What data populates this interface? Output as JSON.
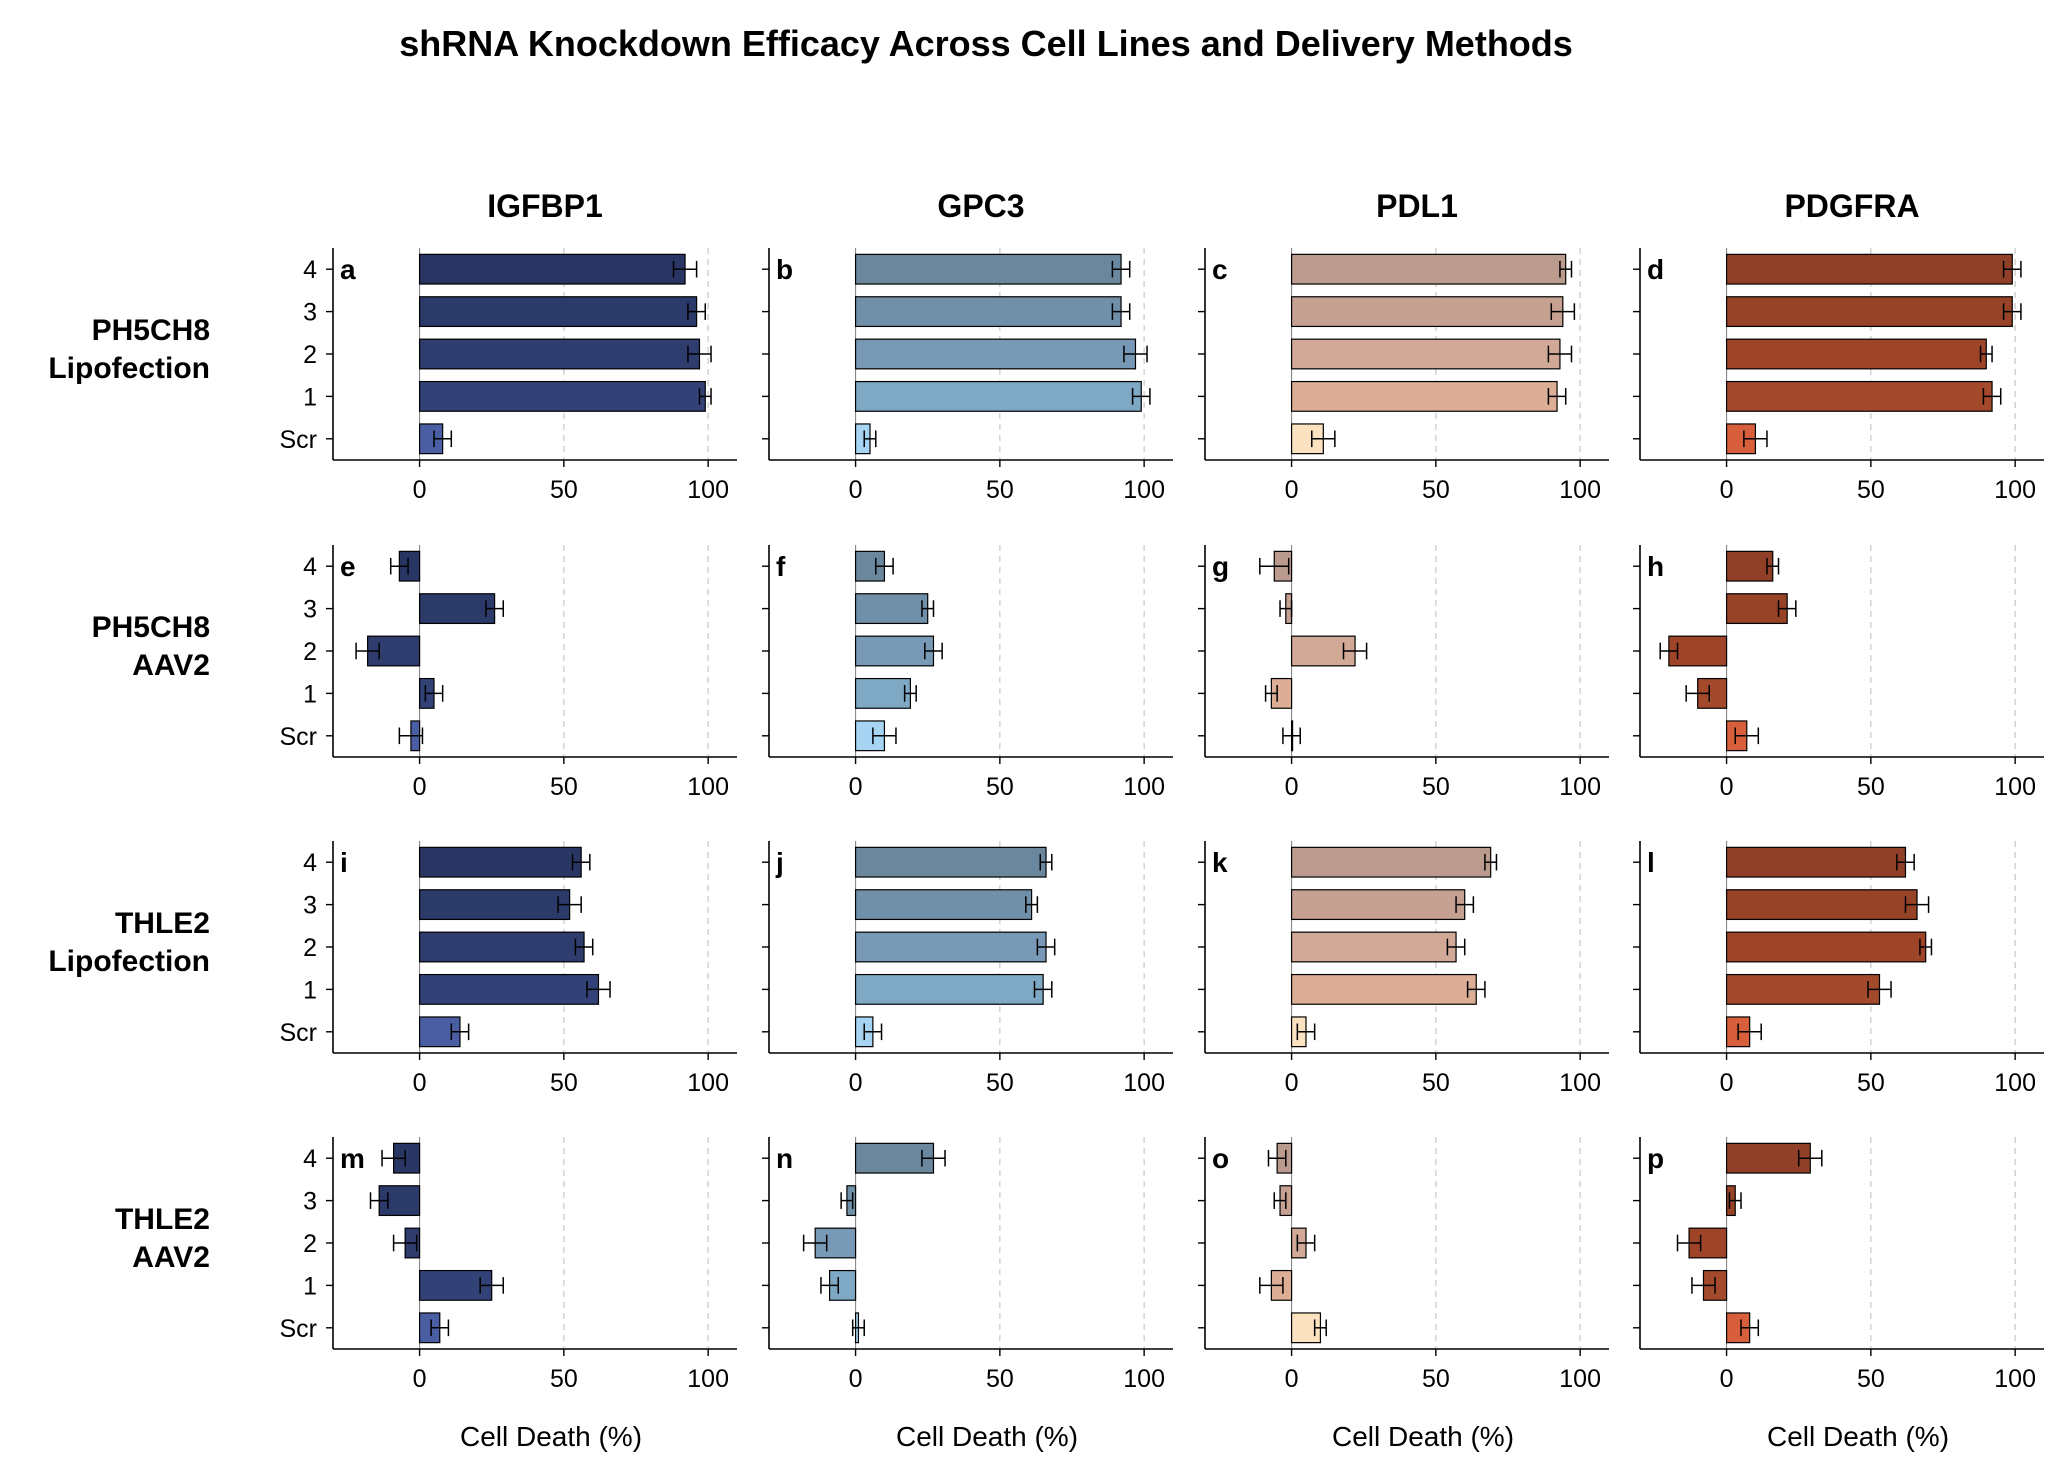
{
  "title": "shRNA Knockdown Efficacy Across Cell Lines and Delivery Methods",
  "xlabel": "Cell Death (%)",
  "chart_data": {
    "type": "bar",
    "orientation": "horizontal",
    "title": "shRNA Knockdown Efficacy Across Cell Lines and Delivery Methods",
    "xlabel": "Cell Death (%)",
    "xlim": [
      -30,
      110
    ],
    "xticks": [
      0,
      50,
      100
    ],
    "grid": "vertical dashed lines at 50 and 100",
    "categories": [
      "Scr",
      "1",
      "2",
      "3",
      "4"
    ],
    "columns": [
      "IGFBP1",
      "GPC3",
      "PDL1",
      "PDGFRA"
    ],
    "rows": [
      {
        "label_line1": "PH5CH8",
        "label_line2": "Lipofection"
      },
      {
        "label_line1": "PH5CH8",
        "label_line2": "AAV2"
      },
      {
        "label_line1": "THLE2",
        "label_line2": "Lipofection"
      },
      {
        "label_line1": "THLE2",
        "label_line2": "AAV2"
      }
    ],
    "palettes": {
      "IGFBP1": [
        "#4a5fa3",
        "#324276",
        "#2f3d6e",
        "#2c3a69",
        "#293664"
      ],
      "GPC3": [
        "#a6d4f2",
        "#7fa8c4",
        "#7799b5",
        "#7090a9",
        "#6a879d"
      ],
      "PDL1": [
        "#fbe2c0",
        "#dcae96",
        "#d2a996",
        "#c6a192",
        "#bb9b8d"
      ],
      "PDGFRA": [
        "#d85f3b",
        "#a44a2c",
        "#9e4529",
        "#974327",
        "#8f4026"
      ]
    },
    "panels": [
      {
        "letter": "a",
        "row": 0,
        "col": 0,
        "values": [
          8,
          99,
          97,
          96,
          92
        ],
        "errors": [
          3,
          2,
          4,
          3,
          4
        ]
      },
      {
        "letter": "b",
        "row": 0,
        "col": 1,
        "values": [
          5,
          99,
          97,
          92,
          92
        ],
        "errors": [
          2,
          3,
          4,
          3,
          3
        ]
      },
      {
        "letter": "c",
        "row": 0,
        "col": 2,
        "values": [
          11,
          92,
          93,
          94,
          95
        ],
        "errors": [
          4,
          3,
          4,
          4,
          2
        ]
      },
      {
        "letter": "d",
        "row": 0,
        "col": 3,
        "values": [
          10,
          92,
          90,
          99,
          99
        ],
        "errors": [
          4,
          3,
          2,
          3,
          3
        ]
      },
      {
        "letter": "e",
        "row": 1,
        "col": 0,
        "values": [
          -3,
          5,
          -18,
          26,
          -7
        ],
        "errors": [
          4,
          3,
          4,
          3,
          3
        ]
      },
      {
        "letter": "f",
        "row": 1,
        "col": 1,
        "values": [
          10,
          19,
          27,
          25,
          10
        ],
        "errors": [
          4,
          2,
          3,
          2,
          3
        ]
      },
      {
        "letter": "g",
        "row": 1,
        "col": 2,
        "values": [
          0,
          -7,
          22,
          -2,
          -6
        ],
        "errors": [
          3,
          2,
          4,
          2,
          5
        ]
      },
      {
        "letter": "h",
        "row": 1,
        "col": 3,
        "values": [
          7,
          -10,
          -20,
          21,
          16
        ],
        "errors": [
          4,
          4,
          3,
          3,
          2
        ]
      },
      {
        "letter": "i",
        "row": 2,
        "col": 0,
        "values": [
          14,
          62,
          57,
          52,
          56
        ],
        "errors": [
          3,
          4,
          3,
          4,
          3
        ]
      },
      {
        "letter": "j",
        "row": 2,
        "col": 1,
        "values": [
          6,
          65,
          66,
          61,
          66
        ],
        "errors": [
          3,
          3,
          3,
          2,
          2
        ]
      },
      {
        "letter": "k",
        "row": 2,
        "col": 2,
        "values": [
          5,
          64,
          57,
          60,
          69
        ],
        "errors": [
          3,
          3,
          3,
          3,
          2
        ]
      },
      {
        "letter": "l",
        "row": 2,
        "col": 3,
        "values": [
          8,
          53,
          69,
          66,
          62
        ],
        "errors": [
          4,
          4,
          2,
          4,
          3
        ]
      },
      {
        "letter": "m",
        "row": 3,
        "col": 0,
        "values": [
          7,
          25,
          -5,
          -14,
          -9
        ],
        "errors": [
          3,
          4,
          4,
          3,
          4
        ]
      },
      {
        "letter": "n",
        "row": 3,
        "col": 1,
        "values": [
          1,
          -9,
          -14,
          -3,
          27
        ],
        "errors": [
          2,
          3,
          4,
          2,
          4
        ]
      },
      {
        "letter": "o",
        "row": 3,
        "col": 2,
        "values": [
          10,
          -7,
          5,
          -4,
          -5
        ],
        "errors": [
          2,
          4,
          3,
          2,
          3
        ]
      },
      {
        "letter": "p",
        "row": 3,
        "col": 3,
        "values": [
          8,
          -8,
          -13,
          3,
          29
        ],
        "errors": [
          3,
          4,
          4,
          2,
          4
        ]
      }
    ]
  }
}
